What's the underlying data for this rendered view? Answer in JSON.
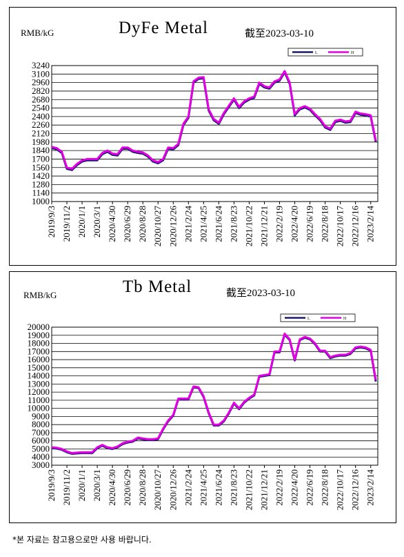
{
  "chart_data": [
    {
      "type": "line",
      "title": "DyFe Metal",
      "y_label": "RMB/kG",
      "annotation": "截至2023-03-10",
      "categories": [
        "2019/9/3",
        null,
        null,
        "2019/11/2",
        null,
        null,
        "2020/1/1",
        null,
        null,
        "2020/3/1",
        null,
        null,
        "2020/4/30",
        null,
        null,
        "2020/6/29",
        null,
        null,
        "2020/8/28",
        null,
        null,
        "2020/10/27",
        null,
        null,
        "2020/12/26",
        null,
        null,
        "2021/2/24",
        null,
        null,
        "2021/4/25",
        null,
        null,
        "2021/6/24",
        null,
        null,
        "2021/8/23",
        null,
        null,
        "2021/10/22",
        null,
        null,
        "2021/12/21",
        null,
        null,
        "2022/2/19",
        null,
        null,
        "2022/4/20",
        null,
        null,
        "2022/6/19",
        null,
        null,
        "2022/8/18",
        null,
        null,
        "2022/10/17",
        null,
        null,
        "2022/12/16",
        null,
        null,
        "2023/2/14",
        null
      ],
      "series": [
        {
          "name": "L",
          "color": "#1a1a6e",
          "values": [
            1880,
            1860,
            1800,
            1540,
            1520,
            1600,
            1660,
            1680,
            1680,
            1680,
            1780,
            1820,
            1770,
            1760,
            1870,
            1870,
            1820,
            1800,
            1790,
            1740,
            1660,
            1630,
            1680,
            1870,
            1860,
            1930,
            2260,
            2380,
            2960,
            3020,
            3030,
            2500,
            2340,
            2280,
            2440,
            2560,
            2680,
            2540,
            2630,
            2680,
            2710,
            2940,
            2880,
            2860,
            2960,
            2990,
            3130,
            2940,
            2420,
            2520,
            2550,
            2510,
            2420,
            2340,
            2220,
            2180,
            2310,
            2330,
            2300,
            2310,
            2460,
            2430,
            2420,
            2400,
            1980
          ]
        },
        {
          "name": "H",
          "color": "#e600e6",
          "values": [
            1900,
            1880,
            1820,
            1560,
            1540,
            1620,
            1680,
            1700,
            1700,
            1700,
            1800,
            1840,
            1790,
            1780,
            1890,
            1890,
            1840,
            1820,
            1810,
            1760,
            1680,
            1650,
            1700,
            1890,
            1880,
            1950,
            2280,
            2400,
            2980,
            3040,
            3050,
            2520,
            2360,
            2300,
            2460,
            2580,
            2700,
            2560,
            2650,
            2700,
            2730,
            2960,
            2900,
            2880,
            2980,
            3010,
            3150,
            2960,
            2440,
            2540,
            2570,
            2530,
            2440,
            2360,
            2240,
            2200,
            2330,
            2350,
            2320,
            2330,
            2480,
            2450,
            2440,
            2420,
            2000
          ]
        }
      ],
      "ylim": [
        1000,
        3240
      ],
      "yticks": [
        1000,
        1140,
        1280,
        1420,
        1560,
        1700,
        1840,
        1980,
        2120,
        2260,
        2400,
        2540,
        2680,
        2820,
        2960,
        3100,
        3240
      ],
      "grid": true,
      "legend": "top right"
    },
    {
      "type": "line",
      "title": "Tb Metal",
      "y_label": "RMB/kG",
      "annotation": "截至2023-03-10",
      "categories": [
        "2019/9/3",
        null,
        null,
        "2019/11/2",
        null,
        null,
        "2020/1/1",
        null,
        null,
        "2020/3/1",
        null,
        null,
        "2020/4/30",
        null,
        null,
        "2020/6/29",
        null,
        null,
        "2020/8/28",
        null,
        null,
        "2020/10/27",
        null,
        null,
        "2020/12/26",
        null,
        null,
        "2021/2/24",
        null,
        null,
        "2021/4/25",
        null,
        null,
        "2021/6/24",
        null,
        null,
        "2021/8/23",
        null,
        null,
        "2021/10/22",
        null,
        null,
        "2021/12/21",
        null,
        null,
        "2022/2/19",
        null,
        null,
        "2022/4/20",
        null,
        null,
        "2022/6/19",
        null,
        null,
        "2022/8/18",
        null,
        null,
        "2022/10/17",
        null,
        null,
        "2022/12/16",
        null,
        null,
        "2023/2/14",
        null
      ],
      "series": [
        {
          "name": "L",
          "color": "#1a1a6e",
          "values": [
            5100,
            5050,
            4900,
            4600,
            4400,
            4450,
            4500,
            4500,
            4500,
            5100,
            5400,
            5100,
            5000,
            5200,
            5600,
            5800,
            5900,
            6300,
            6200,
            6100,
            6100,
            6200,
            7400,
            8400,
            9100,
            11100,
            11100,
            11100,
            12600,
            12500,
            11400,
            9400,
            7900,
            7900,
            8400,
            9400,
            10600,
            9900,
            10700,
            11200,
            11600,
            13900,
            14000,
            14100,
            16900,
            16900,
            19100,
            18400,
            15900,
            18400,
            18700,
            18500,
            17900,
            17000,
            17000,
            16200,
            16400,
            16500,
            16500,
            16700,
            17400,
            17500,
            17400,
            17100,
            13300
          ]
        },
        {
          "name": "H",
          "color": "#e600e6",
          "values": [
            5200,
            5150,
            5000,
            4700,
            4500,
            4550,
            4600,
            4600,
            4600,
            5200,
            5500,
            5200,
            5100,
            5300,
            5700,
            5900,
            6000,
            6400,
            6300,
            6200,
            6200,
            6300,
            7500,
            8500,
            9200,
            11200,
            11200,
            11200,
            12700,
            12600,
            11500,
            9500,
            8000,
            8000,
            8500,
            9500,
            10700,
            10000,
            10800,
            11300,
            11700,
            14000,
            14100,
            14200,
            17000,
            17000,
            19200,
            18500,
            16000,
            18500,
            18800,
            18600,
            18000,
            17100,
            17100,
            16300,
            16500,
            16600,
            16600,
            16800,
            17500,
            17600,
            17500,
            17200,
            13500
          ]
        }
      ],
      "ylim": [
        3000,
        20000
      ],
      "yticks": [
        3000,
        4000,
        5000,
        6000,
        7000,
        8000,
        9000,
        10000,
        11000,
        12000,
        13000,
        14000,
        15000,
        16000,
        17000,
        18000,
        19000,
        20000
      ],
      "grid": true,
      "legend": "top right"
    }
  ],
  "footer": "*본 자료는 참고용으로만 사용 바랍니다."
}
